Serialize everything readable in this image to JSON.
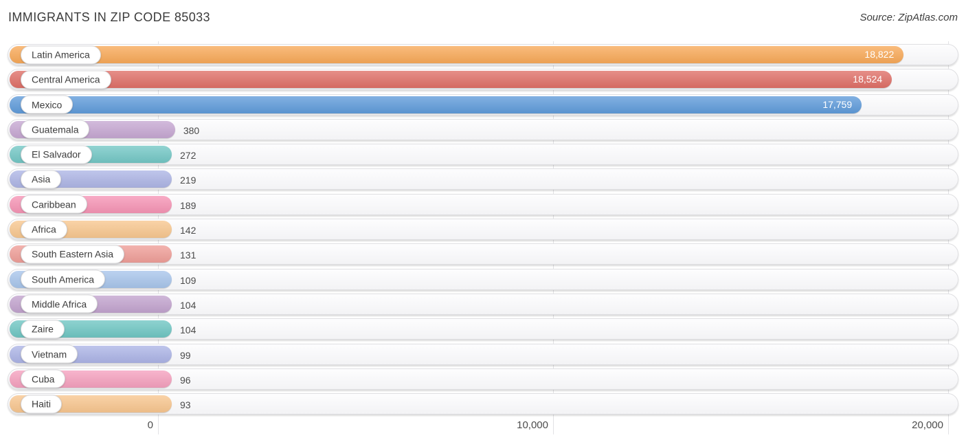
{
  "header": {
    "title": "IMMIGRANTS IN ZIP CODE 85033",
    "source": "Source: ZipAtlas.com"
  },
  "chart_data": {
    "type": "bar",
    "orientation": "horizontal",
    "title": "IMMIGRANTS IN ZIP CODE 85033",
    "categories": [
      "Latin America",
      "Central America",
      "Mexico",
      "Guatemala",
      "El Salvador",
      "Asia",
      "Caribbean",
      "Africa",
      "South Eastern Asia",
      "South America",
      "Middle Africa",
      "Zaire",
      "Vietnam",
      "Cuba",
      "Haiti"
    ],
    "values": [
      18822,
      18524,
      17759,
      380,
      272,
      219,
      189,
      142,
      131,
      109,
      104,
      104,
      99,
      96,
      93
    ],
    "value_labels": [
      "18,822",
      "18,524",
      "17,759",
      "380",
      "272",
      "219",
      "189",
      "142",
      "131",
      "109",
      "104",
      "104",
      "99",
      "96",
      "93"
    ],
    "bar_colors": [
      "#f8a958",
      "#df6f67",
      "#5f9bda",
      "#c6a7d2",
      "#73c7c5",
      "#adb5e5",
      "#f694b5",
      "#f8c78f",
      "#ef9e98",
      "#a8c5eb",
      "#c2a3ce",
      "#6fc6c3",
      "#acb4e6",
      "#f5a0be",
      "#f8c68f"
    ],
    "axis": {
      "min": 0,
      "max": 20000,
      "grid": true,
      "ticks": [
        {
          "label": "0",
          "value": 0
        },
        {
          "label": "10,000",
          "value": 10000
        },
        {
          "label": "20,000",
          "value": 20000
        }
      ]
    },
    "value_label_inside_color": "#ffffff",
    "value_label_outside_color": "#4a4a4a",
    "legend": null
  }
}
